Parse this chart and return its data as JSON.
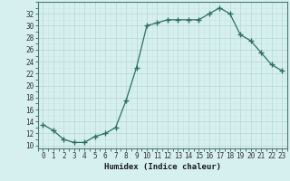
{
  "x": [
    0,
    1,
    2,
    3,
    4,
    5,
    6,
    7,
    8,
    9,
    10,
    11,
    12,
    13,
    14,
    15,
    16,
    17,
    18,
    19,
    20,
    21,
    22,
    23
  ],
  "y": [
    13.5,
    12.5,
    11,
    10.5,
    10.5,
    11.5,
    12,
    13,
    17.5,
    23,
    30,
    30.5,
    31,
    31,
    31,
    31,
    32,
    33,
    32,
    28.5,
    27.5,
    25.5,
    23.5,
    22.5
  ],
  "line_color": "#2d6e65",
  "marker": "+",
  "marker_size": 4,
  "bg_color": "#d6f0f0",
  "grid_major_color": "#b8d4d4",
  "grid_minor_color": "#c8e4e4",
  "xlabel": "Humidex (Indice chaleur)",
  "ylabel_ticks": [
    10,
    12,
    14,
    16,
    18,
    20,
    22,
    24,
    26,
    28,
    30,
    32
  ],
  "xlim": [
    -0.5,
    23.5
  ],
  "ylim": [
    9.5,
    34.0
  ],
  "xticks": [
    0,
    1,
    2,
    3,
    4,
    5,
    6,
    7,
    8,
    9,
    10,
    11,
    12,
    13,
    14,
    15,
    16,
    17,
    18,
    19,
    20,
    21,
    22,
    23
  ],
  "tick_fontsize": 5.5,
  "label_fontsize": 6.5,
  "marker_color": "#2d6e65",
  "spine_color": "#4a7a70",
  "linewidth": 0.9
}
